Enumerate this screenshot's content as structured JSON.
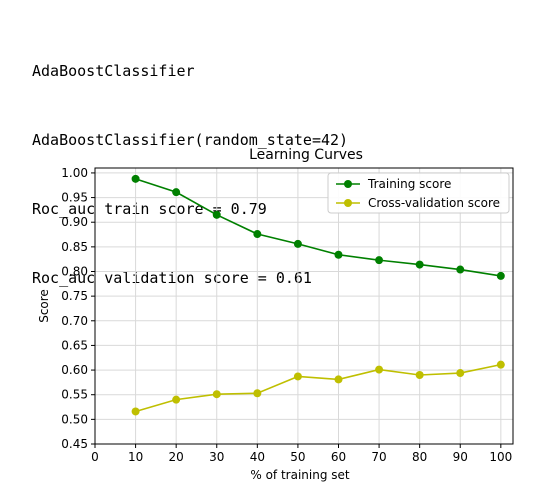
{
  "output_lines": [
    "AdaBoostClassifier",
    "AdaBoostClassifier(random_state=42)",
    "Roc_auc train score = 0.79",
    "Roc_auc validation score = 0.61"
  ],
  "chart_data": {
    "type": "line",
    "title": "Learning Curves",
    "xlabel": "% of training set",
    "ylabel": "Score",
    "xlim": [
      0,
      103
    ],
    "ylim": [
      0.45,
      1.01
    ],
    "xticks": [
      0,
      10,
      20,
      30,
      40,
      50,
      60,
      70,
      80,
      90,
      100
    ],
    "yticks": [
      0.45,
      0.5,
      0.55,
      0.6,
      0.65,
      0.7,
      0.75,
      0.8,
      0.85,
      0.9,
      0.95,
      1.0
    ],
    "grid": true,
    "legend_position": "top-right",
    "series": [
      {
        "name": "Training score",
        "color": "#008000",
        "x": [
          10,
          20,
          30,
          40,
          50,
          60,
          70,
          80,
          90,
          100
        ],
        "y": [
          0.988,
          0.961,
          0.915,
          0.876,
          0.856,
          0.834,
          0.823,
          0.814,
          0.804,
          0.791
        ]
      },
      {
        "name": "Cross-validation score",
        "color": "#bfbf00",
        "x": [
          10,
          20,
          30,
          40,
          50,
          60,
          70,
          80,
          90,
          100
        ],
        "y": [
          0.516,
          0.54,
          0.551,
          0.553,
          0.587,
          0.581,
          0.601,
          0.59,
          0.594,
          0.611
        ]
      }
    ]
  }
}
